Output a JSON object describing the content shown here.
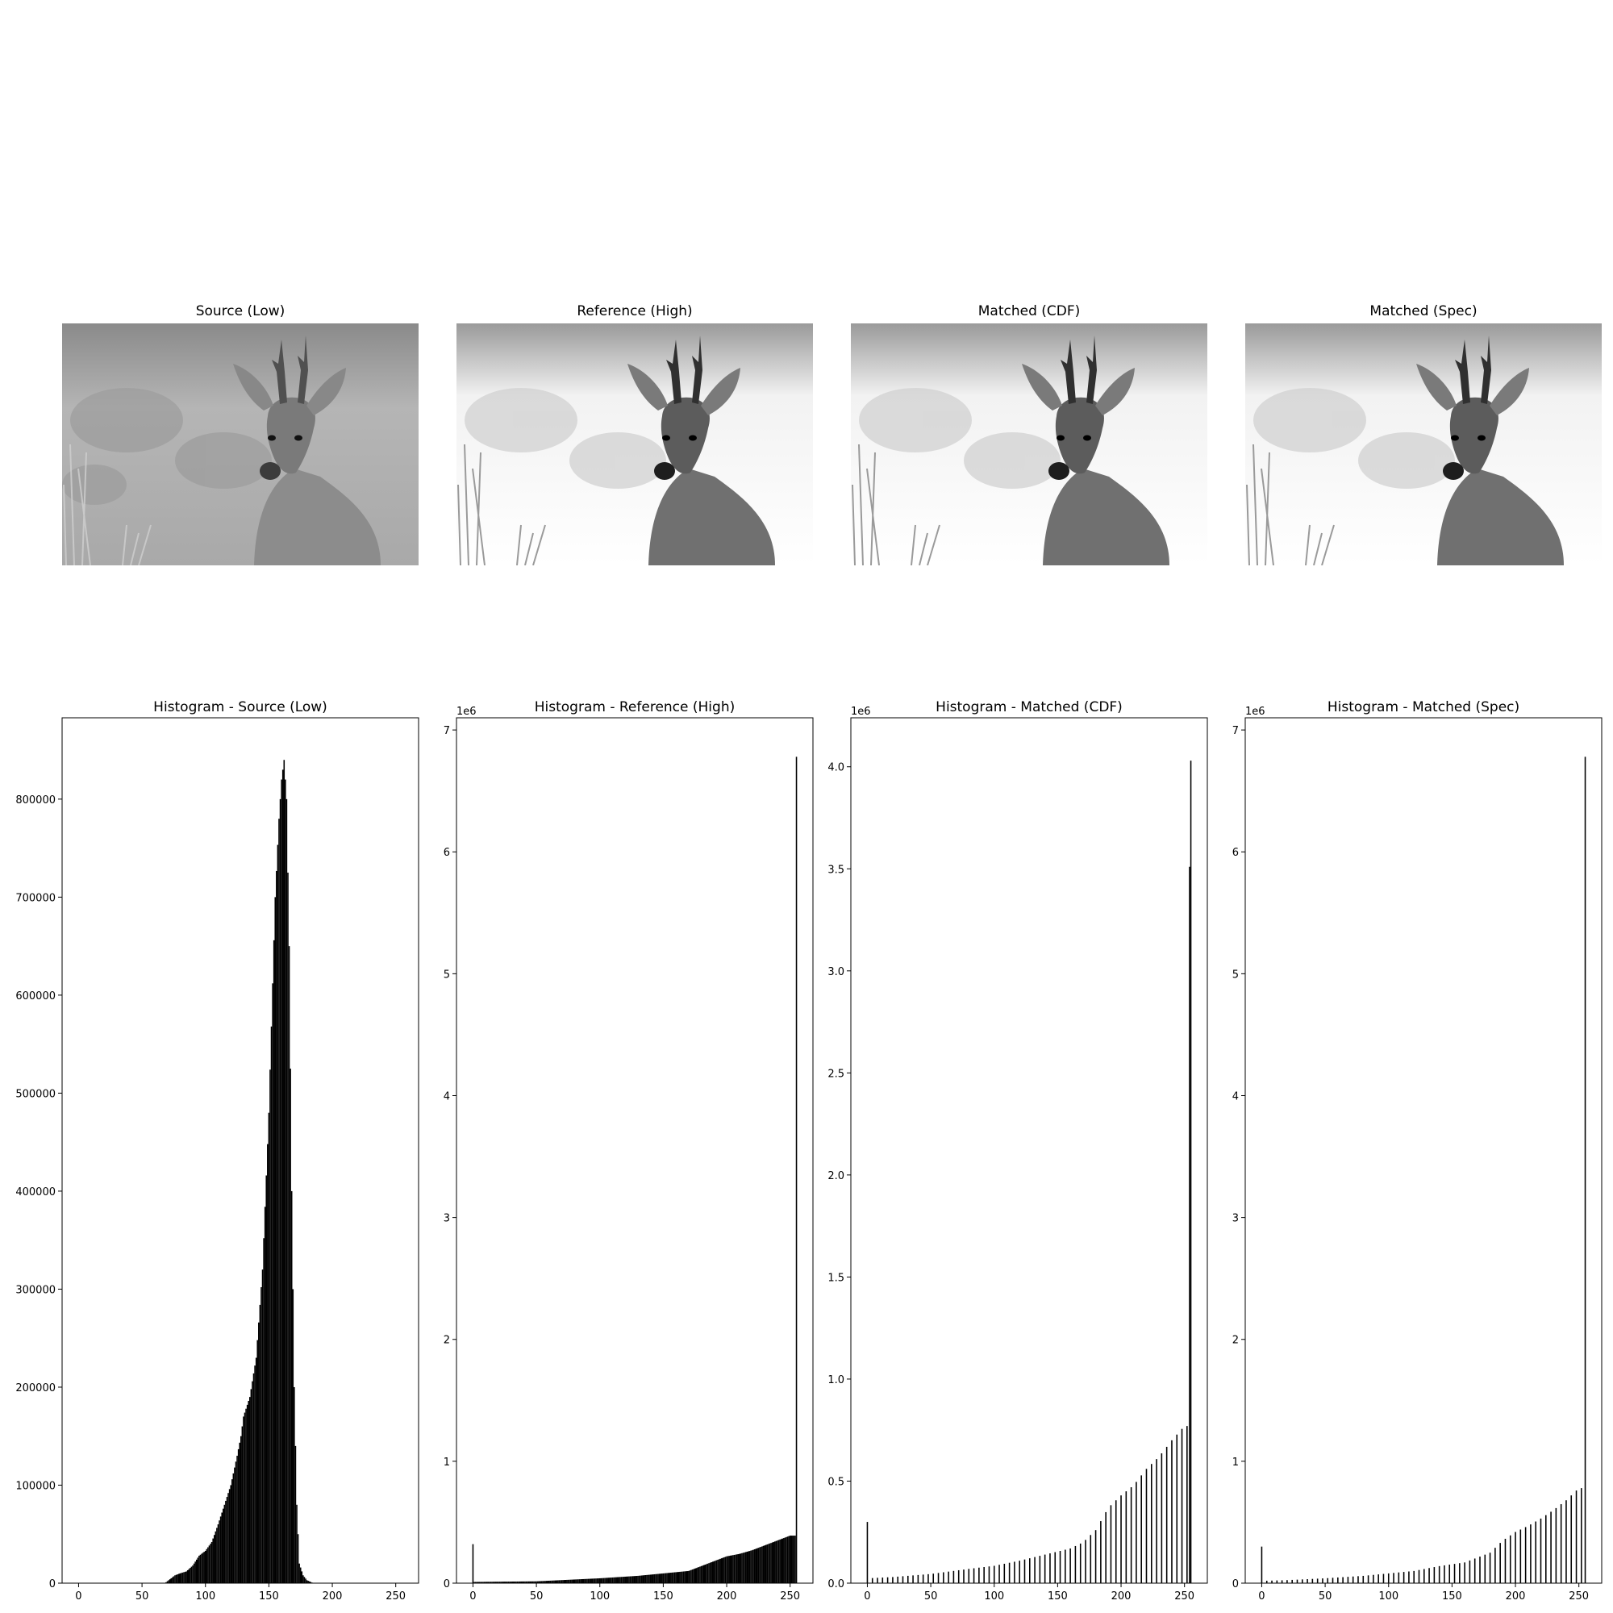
{
  "image_panels": [
    {
      "title": "Source (Low)",
      "tone": "low"
    },
    {
      "title": "Reference (High)",
      "tone": "high"
    },
    {
      "title": "Matched (CDF)",
      "tone": "high"
    },
    {
      "title": "Matched (Spec)",
      "tone": "high"
    }
  ],
  "chart_data": [
    {
      "type": "bar",
      "title": "Histogram - Source (Low)",
      "xlim": [
        -13,
        268
      ],
      "ylim": [
        0,
        883000
      ],
      "x_ticks": [
        0,
        50,
        100,
        150,
        200,
        250
      ],
      "y_ticks": [
        0,
        100000,
        200000,
        300000,
        400000,
        500000,
        600000,
        700000,
        800000
      ],
      "y_tick_labels": [
        "0",
        "100000",
        "200000",
        "300000",
        "400000",
        "500000",
        "600000",
        "700000",
        "800000"
      ],
      "scale_label": "",
      "distribution": "dense",
      "points": [
        [
          68,
          0
        ],
        [
          72,
          4000
        ],
        [
          76,
          8000
        ],
        [
          80,
          10000
        ],
        [
          85,
          12000
        ],
        [
          90,
          18000
        ],
        [
          95,
          28000
        ],
        [
          100,
          33000
        ],
        [
          105,
          42000
        ],
        [
          110,
          60000
        ],
        [
          115,
          80000
        ],
        [
          120,
          100000
        ],
        [
          125,
          130000
        ],
        [
          128,
          150000
        ],
        [
          130,
          170000
        ],
        [
          135,
          190000
        ],
        [
          140,
          230000
        ],
        [
          145,
          320000
        ],
        [
          150,
          480000
        ],
        [
          155,
          700000
        ],
        [
          158,
          780000
        ],
        [
          160,
          820000
        ],
        [
          162,
          840000
        ],
        [
          164,
          800000
        ],
        [
          166,
          650000
        ],
        [
          168,
          400000
        ],
        [
          170,
          200000
        ],
        [
          172,
          80000
        ],
        [
          174,
          20000
        ],
        [
          177,
          8000
        ],
        [
          180,
          3000
        ],
        [
          185,
          0
        ]
      ]
    },
    {
      "type": "bar",
      "title": "Histogram - Reference (High)",
      "xlim": [
        -13,
        268
      ],
      "ylim": [
        0,
        7100000
      ],
      "x_ticks": [
        0,
        50,
        100,
        150,
        200,
        250
      ],
      "y_ticks": [
        0,
        1000000,
        2000000,
        3000000,
        4000000,
        5000000,
        6000000,
        7000000
      ],
      "y_tick_labels": [
        "0",
        "1",
        "2",
        "3",
        "4",
        "5",
        "6",
        "7"
      ],
      "scale_label": "1e6",
      "distribution": "dense",
      "spikes": [
        [
          0,
          320000
        ],
        [
          255,
          6780000
        ]
      ],
      "points": [
        [
          1,
          10000
        ],
        [
          50,
          15000
        ],
        [
          100,
          40000
        ],
        [
          130,
          60000
        ],
        [
          150,
          80000
        ],
        [
          170,
          100000
        ],
        [
          180,
          140000
        ],
        [
          190,
          180000
        ],
        [
          200,
          220000
        ],
        [
          210,
          240000
        ],
        [
          220,
          270000
        ],
        [
          230,
          310000
        ],
        [
          240,
          350000
        ],
        [
          250,
          390000
        ],
        [
          254,
          390000
        ]
      ]
    },
    {
      "type": "bar",
      "title": "Histogram - Matched (CDF)",
      "xlim": [
        -13,
        268
      ],
      "ylim": [
        0,
        4240000
      ],
      "x_ticks": [
        0,
        50,
        100,
        150,
        200,
        250
      ],
      "y_ticks": [
        0,
        500000,
        1000000,
        1500000,
        2000000,
        2500000,
        3000000,
        3500000,
        4000000
      ],
      "y_tick_labels": [
        "0.0",
        "0.5",
        "1.0",
        "1.5",
        "2.0",
        "2.5",
        "3.0",
        "3.5",
        "4.0"
      ],
      "scale_label": "1e6",
      "distribution": "sparse",
      "spikes": [
        [
          0,
          300000
        ],
        [
          254,
          3510000
        ],
        [
          255,
          4030000
        ]
      ],
      "sparse_start": 4,
      "sparse_step": 4,
      "points": [
        [
          4,
          25000
        ],
        [
          20,
          30000
        ],
        [
          50,
          45000
        ],
        [
          80,
          70000
        ],
        [
          100,
          85000
        ],
        [
          120,
          110000
        ],
        [
          140,
          140000
        ],
        [
          160,
          170000
        ],
        [
          170,
          200000
        ],
        [
          180,
          260000
        ],
        [
          190,
          370000
        ],
        [
          200,
          430000
        ],
        [
          210,
          480000
        ],
        [
          220,
          560000
        ],
        [
          230,
          620000
        ],
        [
          240,
          700000
        ],
        [
          250,
          770000
        ]
      ]
    },
    {
      "type": "bar",
      "title": "Histogram - Matched (Spec)",
      "xlim": [
        -13,
        268
      ],
      "ylim": [
        0,
        7100000
      ],
      "x_ticks": [
        0,
        50,
        100,
        150,
        200,
        250
      ],
      "y_ticks": [
        0,
        1000000,
        2000000,
        3000000,
        4000000,
        5000000,
        6000000,
        7000000
      ],
      "y_tick_labels": [
        "0",
        "1",
        "2",
        "3",
        "4",
        "5",
        "6",
        "7"
      ],
      "scale_label": "1e6",
      "distribution": "sparse",
      "spikes": [
        [
          0,
          300000
        ],
        [
          255,
          6780000
        ]
      ],
      "sparse_start": 4,
      "sparse_step": 4,
      "points": [
        [
          4,
          20000
        ],
        [
          20,
          25000
        ],
        [
          50,
          40000
        ],
        [
          80,
          60000
        ],
        [
          100,
          80000
        ],
        [
          120,
          100000
        ],
        [
          140,
          140000
        ],
        [
          160,
          170000
        ],
        [
          180,
          250000
        ],
        [
          190,
          350000
        ],
        [
          200,
          420000
        ],
        [
          210,
          470000
        ],
        [
          220,
          530000
        ],
        [
          230,
          600000
        ],
        [
          240,
          680000
        ],
        [
          250,
          780000
        ]
      ]
    }
  ]
}
